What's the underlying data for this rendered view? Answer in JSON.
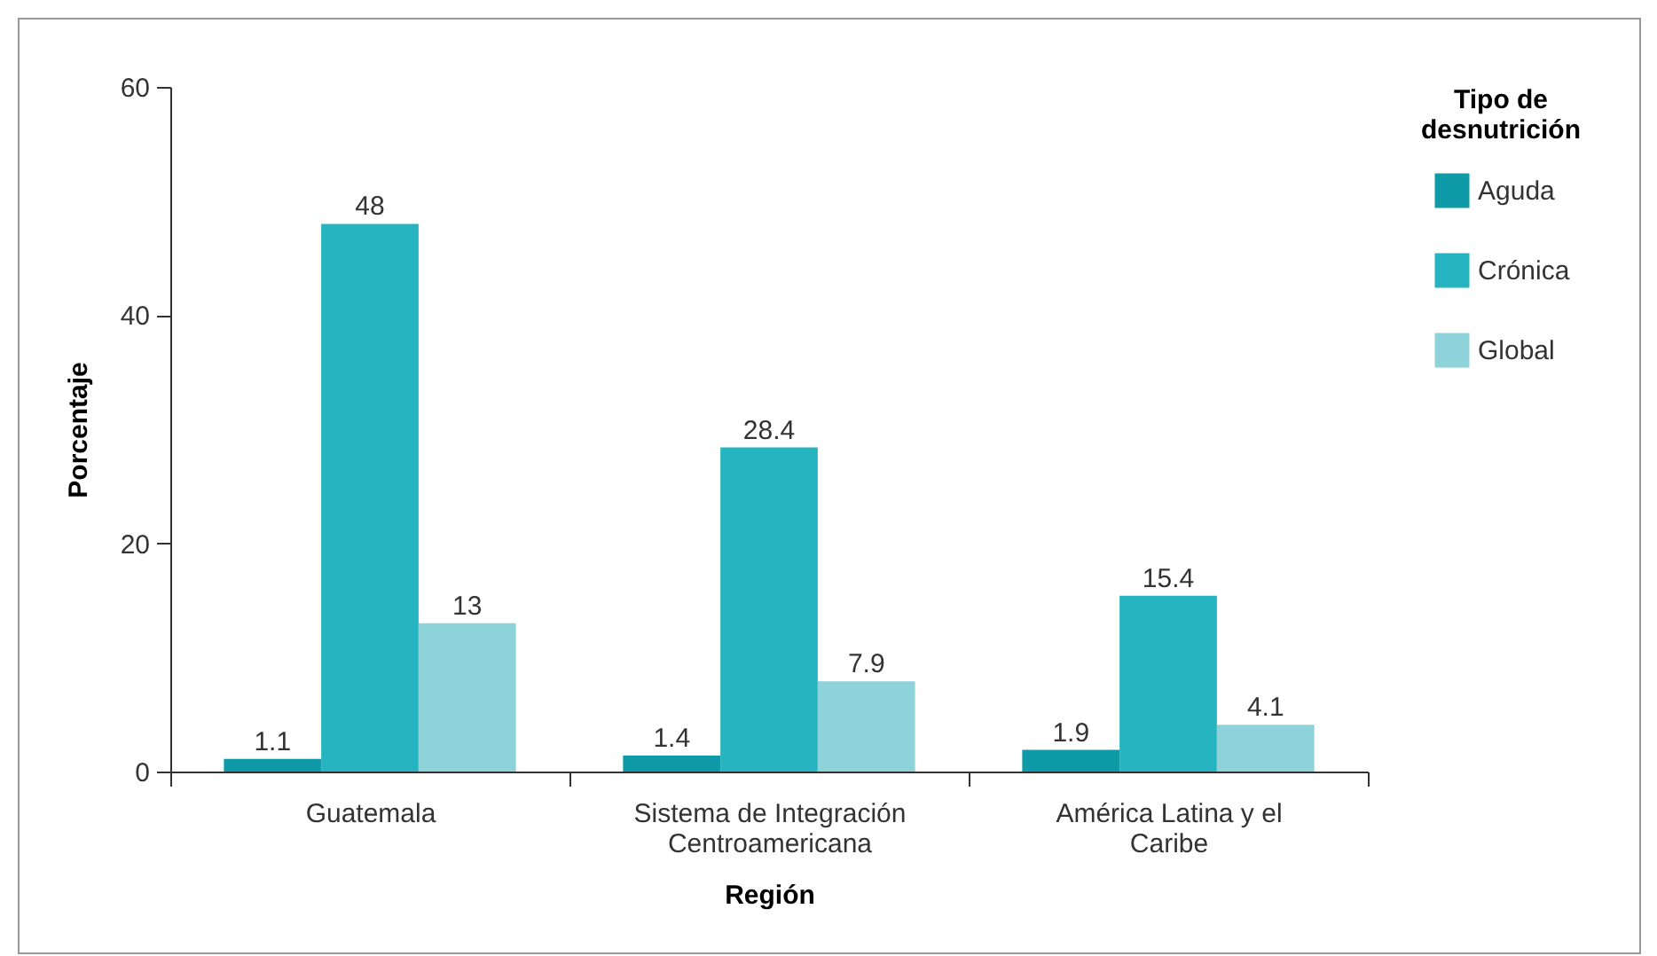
{
  "chart_data": {
    "type": "bar",
    "xlabel": "Región",
    "ylabel": "Porcentaje",
    "legend_title": "Tipo de desnutrición",
    "categories": [
      "Guatemala",
      "Sistema de Integración Centroamericana",
      "América Latina y el Caribe"
    ],
    "series": [
      {
        "name": "Aguda",
        "color": "#0e9aa7",
        "values": [
          1.1,
          1.4,
          1.9
        ]
      },
      {
        "name": "Crónica",
        "color": "#26b5c0",
        "values": [
          48,
          28.4,
          15.4
        ]
      },
      {
        "name": "Global",
        "color": "#8dd3d9",
        "values": [
          13,
          7.9,
          4.1
        ]
      }
    ],
    "ylim": [
      0,
      60
    ],
    "yticks": [
      0,
      20,
      40,
      60
    ],
    "grid": false,
    "legend": "right",
    "data_labels": true
  }
}
